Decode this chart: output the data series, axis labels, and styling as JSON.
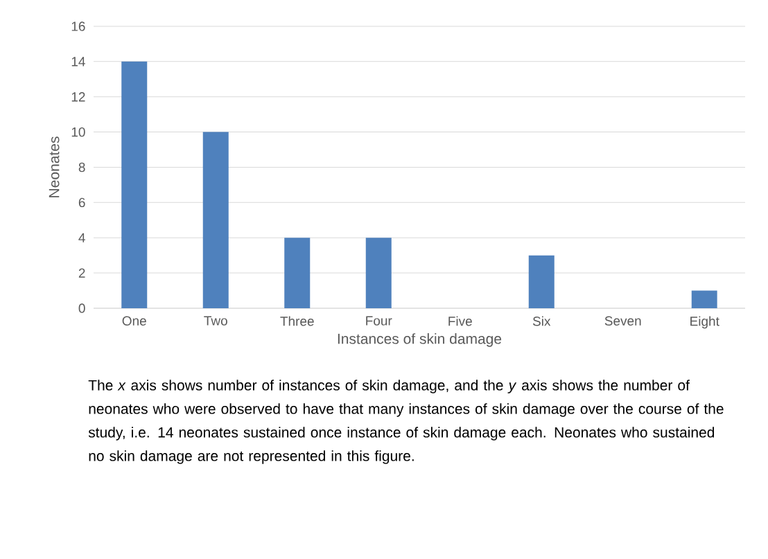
{
  "chart_data": {
    "type": "bar",
    "xlabel": "Instances of skin damage",
    "ylabel": "Neonates",
    "categories": [
      "One",
      "Two",
      "Three",
      "Four",
      "Five",
      "Six",
      "Seven",
      "Eight"
    ],
    "values": [
      14,
      10,
      4,
      4,
      0,
      3,
      0,
      1
    ],
    "color": "#4f81bd",
    "ylim": [
      0,
      16
    ],
    "yticks": [
      0,
      2,
      4,
      6,
      8,
      10,
      12,
      14,
      16
    ],
    "grid": "y",
    "annotations": [
      "The *x* axis shows number of instances of skin damage, and the *y* axis shows the number of neonates who were observed to have that many instances of skin damage over the course of the study, i.e. 14 neonates sustained once instance of skin damage each. Neonates who sustained no skin damage are not represented in this figure."
    ]
  }
}
